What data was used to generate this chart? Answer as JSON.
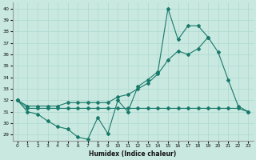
{
  "xlabel": "Humidex (Indice chaleur)",
  "bg_color": "#c8e8e0",
  "grid_color": "#aed8d0",
  "line_color": "#1a7a6a",
  "x": [
    0,
    1,
    2,
    3,
    4,
    5,
    6,
    7,
    8,
    9,
    10,
    11,
    12,
    13,
    14,
    15,
    16,
    17,
    18,
    19,
    20,
    21,
    22,
    23
  ],
  "line_spike": [
    32,
    31,
    30.8,
    30.2,
    29.7,
    29.5,
    28.8,
    28.6,
    30.5,
    29.1,
    32.0,
    31.0,
    33.2,
    33.8,
    34.5,
    40.0,
    37.3,
    38.5,
    38.5,
    37.5,
    null,
    null,
    null,
    null
  ],
  "line_diag": [
    32,
    31.5,
    31.5,
    31.5,
    31.5,
    31.8,
    31.8,
    31.8,
    31.8,
    31.8,
    32.3,
    32.5,
    33.0,
    33.5,
    34.3,
    35.5,
    36.3,
    36.0,
    36.5,
    37.5,
    36.2,
    33.8,
    31.5,
    31.0
  ],
  "line_flat": [
    32,
    31.3,
    31.3,
    31.3,
    31.3,
    31.3,
    31.3,
    31.3,
    31.3,
    31.3,
    31.3,
    31.3,
    31.3,
    31.3,
    31.3,
    31.3,
    31.3,
    31.3,
    31.3,
    31.3,
    31.3,
    31.3,
    31.3,
    31.0
  ],
  "ylim": [
    28.5,
    40.5
  ],
  "xlim": [
    -0.5,
    23.5
  ],
  "yticks": [
    29,
    30,
    31,
    32,
    33,
    34,
    35,
    36,
    37,
    38,
    39,
    40
  ],
  "xticks": [
    0,
    1,
    2,
    3,
    4,
    5,
    6,
    7,
    8,
    9,
    10,
    11,
    12,
    13,
    14,
    15,
    16,
    17,
    18,
    19,
    20,
    21,
    22,
    23
  ]
}
